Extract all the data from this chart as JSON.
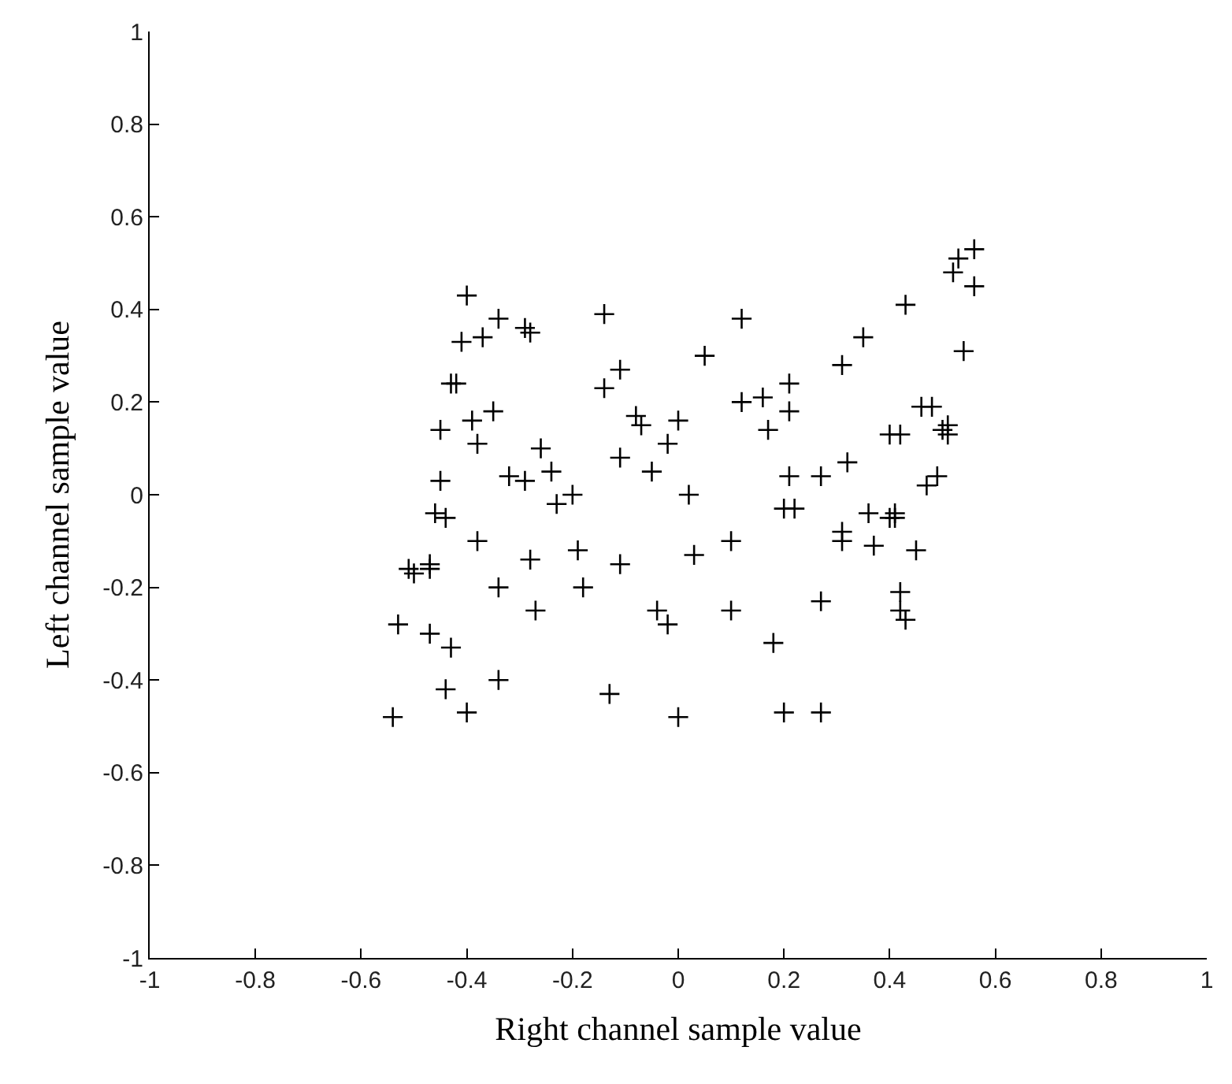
{
  "chart_data": {
    "type": "scatter",
    "xlabel": "Right channel sample value",
    "ylabel": "Left channel sample value",
    "xlim": [
      -1,
      1
    ],
    "ylim": [
      -1,
      1
    ],
    "xticks": [
      {
        "value": -1,
        "label": "-1"
      },
      {
        "value": -0.8,
        "label": "-0.8"
      },
      {
        "value": -0.6,
        "label": "-0.6"
      },
      {
        "value": -0.4,
        "label": "-0.4"
      },
      {
        "value": -0.2,
        "label": "-0.2"
      },
      {
        "value": 0,
        "label": "0"
      },
      {
        "value": 0.2,
        "label": "0.2"
      },
      {
        "value": 0.4,
        "label": "0.4"
      },
      {
        "value": 0.6,
        "label": "0.6"
      },
      {
        "value": 0.8,
        "label": "0.8"
      },
      {
        "value": 1,
        "label": "1"
      }
    ],
    "yticks": [
      {
        "value": -1,
        "label": "-1"
      },
      {
        "value": -0.8,
        "label": "-0.8"
      },
      {
        "value": -0.6,
        "label": "-0.6"
      },
      {
        "value": -0.4,
        "label": "-0.4"
      },
      {
        "value": -0.2,
        "label": "-0.2"
      },
      {
        "value": 0,
        "label": "0"
      },
      {
        "value": 0.2,
        "label": "0.2"
      },
      {
        "value": 0.4,
        "label": "0.4"
      },
      {
        "value": 0.6,
        "label": "0.6"
      },
      {
        "value": 0.8,
        "label": "0.8"
      },
      {
        "value": 1,
        "label": "1"
      }
    ],
    "marker": "cross",
    "series": [
      {
        "color": "#000000",
        "x": [
          -0.54,
          -0.53,
          -0.51,
          -0.5,
          -0.47,
          -0.47,
          -0.47,
          -0.46,
          -0.45,
          -0.45,
          -0.44,
          -0.44,
          -0.43,
          -0.43,
          -0.42,
          -0.41,
          -0.4,
          -0.4,
          -0.39,
          -0.38,
          -0.38,
          -0.37,
          -0.35,
          -0.34,
          -0.34,
          -0.34,
          -0.32,
          -0.29,
          -0.29,
          -0.28,
          -0.28,
          -0.27,
          -0.26,
          -0.24,
          -0.23,
          -0.2,
          -0.19,
          -0.18,
          -0.14,
          -0.14,
          -0.13,
          -0.11,
          -0.11,
          -0.11,
          -0.08,
          -0.07,
          -0.05,
          -0.04,
          -0.02,
          -0.02,
          0.0,
          0.0,
          0.02,
          0.03,
          0.05,
          0.1,
          0.1,
          0.12,
          0.12,
          0.16,
          0.17,
          0.18,
          0.2,
          0.2,
          0.21,
          0.21,
          0.21,
          0.22,
          0.27,
          0.27,
          0.27,
          0.31,
          0.31,
          0.31,
          0.32,
          0.35,
          0.36,
          0.37,
          0.4,
          0.4,
          0.41,
          0.41,
          0.42,
          0.42,
          0.42,
          0.43,
          0.43,
          0.45,
          0.46,
          0.47,
          0.48,
          0.49,
          0.5,
          0.51,
          0.51,
          0.52,
          0.53,
          0.54,
          0.56,
          0.56
        ],
        "values": [
          -0.48,
          -0.28,
          -0.16,
          -0.17,
          -0.15,
          -0.16,
          -0.3,
          -0.04,
          0.03,
          0.14,
          -0.05,
          -0.42,
          -0.33,
          0.24,
          0.24,
          0.33,
          0.43,
          -0.47,
          0.16,
          0.11,
          -0.1,
          0.34,
          0.18,
          0.38,
          -0.2,
          -0.4,
          0.04,
          0.03,
          0.36,
          0.35,
          -0.14,
          -0.25,
          0.1,
          0.05,
          -0.02,
          0.0,
          -0.12,
          -0.2,
          0.39,
          0.23,
          -0.43,
          0.27,
          0.08,
          -0.15,
          0.17,
          0.15,
          0.05,
          -0.25,
          0.11,
          -0.28,
          0.16,
          -0.48,
          0.0,
          -0.13,
          0.3,
          -0.1,
          -0.25,
          0.38,
          0.2,
          0.21,
          0.14,
          -0.32,
          -0.03,
          -0.47,
          0.18,
          0.24,
          0.04,
          -0.03,
          0.04,
          -0.23,
          -0.47,
          0.28,
          -0.08,
          -0.1,
          0.07,
          0.34,
          -0.04,
          -0.11,
          0.13,
          -0.05,
          -0.04,
          -0.05,
          0.13,
          -0.21,
          -0.25,
          0.41,
          -0.27,
          -0.12,
          0.19,
          0.02,
          0.19,
          0.04,
          0.14,
          0.13,
          0.15,
          0.48,
          0.51,
          0.31,
          0.53,
          0.45
        ]
      }
    ]
  }
}
